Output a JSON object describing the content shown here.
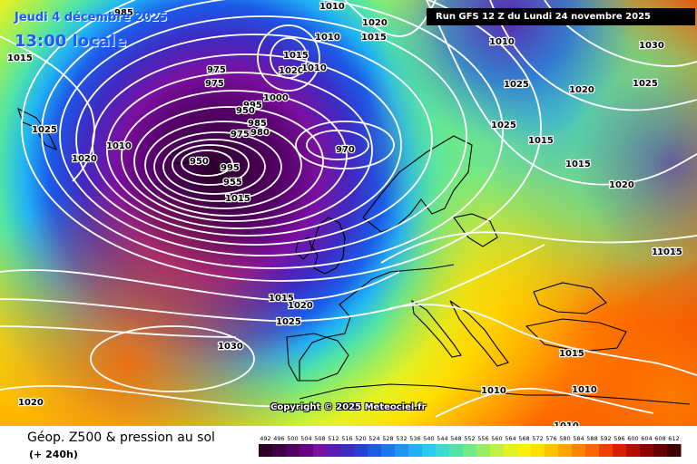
{
  "header": {
    "valid_date": "Jeudi 4 décembre 2025",
    "valid_time": "13:00 locale",
    "run": "Run GFS 12 Z du Lundi 24 novembre 2025"
  },
  "copyright": "Copyright © 2025 Meteociel.fr",
  "footer": {
    "title": "Géop. Z500 & pression au sol",
    "subtitle": "(+ 240h)"
  },
  "legend": {
    "ticks": [
      "492",
      "496",
      "500",
      "504",
      "508",
      "512",
      "516",
      "520",
      "524",
      "528",
      "532",
      "536",
      "540",
      "544",
      "548",
      "552",
      "556",
      "560",
      "564",
      "568",
      "572",
      "576",
      "580",
      "584",
      "588",
      "592",
      "596",
      "600",
      "604",
      "608",
      "612"
    ],
    "colors": [
      "#2a0028",
      "#3e0044",
      "#520062",
      "#660080",
      "#7a10a0",
      "#5a1cb4",
      "#3c2cc4",
      "#2840d8",
      "#1c5ae8",
      "#1a78f0",
      "#1c96f4",
      "#20b2f4",
      "#28ccf0",
      "#3adcd0",
      "#50e4a8",
      "#70ea84",
      "#98ee60",
      "#c0f040",
      "#e4f222",
      "#faf00e",
      "#ffe000",
      "#ffc400",
      "#ffa400",
      "#ff8400",
      "#ff6400",
      "#f04000",
      "#d82000",
      "#b80e00",
      "#900000",
      "#680000",
      "#400000"
    ]
  },
  "pressure_labels": {
    "labels": [
      "985",
      "1010",
      "1020",
      "1015",
      "1010",
      "1030",
      "1015",
      "1025",
      "1010",
      "1020",
      "1025",
      "975",
      "1015",
      "975",
      "1025",
      "1020",
      "1010",
      "1015",
      "995",
      "1000",
      "950",
      "985",
      "1015",
      "1015",
      "1025",
      "1020",
      "970",
      "980",
      "975",
      "1015",
      "1020",
      "950",
      "995",
      "955",
      "1020",
      "1015",
      "1015",
      "1020",
      "1025",
      "1030",
      "1010",
      "1015",
      "1020",
      "1010",
      "1010",
      "1010"
    ]
  }
}
